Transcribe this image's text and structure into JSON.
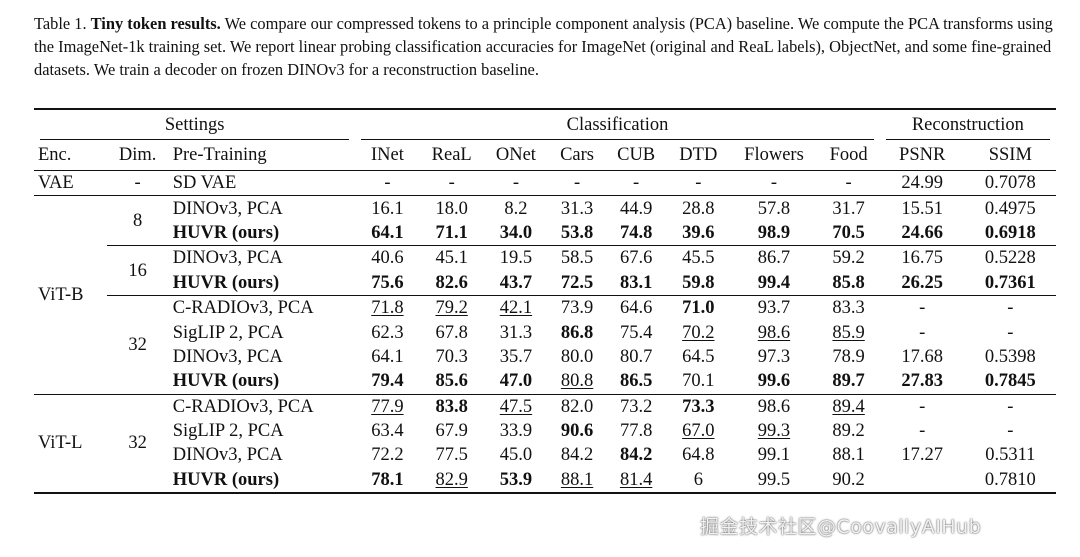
{
  "caption": {
    "label": "Table 1.",
    "bold_title": "Tiny token results.",
    "text": "We compare our compressed tokens to a principle component analysis (PCA) baseline. We compute the PCA transforms using the ImageNet-1k training set. We report linear probing classification accuracies for ImageNet (original and ReaL labels), ObjectNet, and some fine-grained datasets. We train a decoder on frozen DINOv3 for a reconstruction baseline."
  },
  "groups": {
    "settings": "Settings",
    "classification": "Classification",
    "reconstruction": "Reconstruction"
  },
  "columns": [
    "Enc.",
    "Dim.",
    "Pre-Training",
    "INet",
    "ReaL",
    "ONet",
    "Cars",
    "CUB",
    "DTD",
    "Flowers",
    "Food",
    "PSNR",
    "SSIM"
  ],
  "vae_row": {
    "enc": "VAE",
    "dim": "-",
    "pre": "SD VAE",
    "vals": [
      "-",
      "-",
      "-",
      "-",
      "-",
      "-",
      "-",
      "-",
      "24.99",
      "0.7078"
    ]
  },
  "vitb": {
    "enc": "ViT-B",
    "block8": {
      "dim": "8",
      "rows": [
        {
          "pre": "DINOv3, PCA",
          "vals": [
            "16.1",
            "18.0",
            "8.2",
            "31.3",
            "44.9",
            "28.8",
            "57.8",
            "31.7",
            "15.51",
            "0.4975"
          ]
        },
        {
          "pre": "HUVR (ours)",
          "vals": [
            "64.1",
            "71.1",
            "34.0",
            "53.8",
            "74.8",
            "39.6",
            "98.9",
            "70.5",
            "24.66",
            "0.6918"
          ]
        }
      ]
    },
    "block16": {
      "dim": "16",
      "rows": [
        {
          "pre": "DINOv3, PCA",
          "vals": [
            "40.6",
            "45.1",
            "19.5",
            "58.5",
            "67.6",
            "45.5",
            "86.7",
            "59.2",
            "16.75",
            "0.5228"
          ]
        },
        {
          "pre": "HUVR (ours)",
          "vals": [
            "75.6",
            "82.6",
            "43.7",
            "72.5",
            "83.1",
            "59.8",
            "99.4",
            "85.8",
            "26.25",
            "0.7361"
          ]
        }
      ]
    },
    "block32": {
      "dim": "32",
      "rows": [
        {
          "pre": "C-RADIOv3, PCA",
          "vals": [
            "71.8",
            "79.2",
            "42.1",
            "73.9",
            "64.6",
            "71.0",
            "93.7",
            "83.3",
            "-",
            "-"
          ]
        },
        {
          "pre": "SigLIP 2, PCA",
          "vals": [
            "62.3",
            "67.8",
            "31.3",
            "86.8",
            "75.4",
            "70.2",
            "98.6",
            "85.9",
            "-",
            "-"
          ]
        },
        {
          "pre": "DINOv3, PCA",
          "vals": [
            "64.1",
            "70.3",
            "35.7",
            "80.0",
            "80.7",
            "64.5",
            "97.3",
            "78.9",
            "17.68",
            "0.5398"
          ]
        },
        {
          "pre": "HUVR (ours)",
          "vals": [
            "79.4",
            "85.6",
            "47.0",
            "80.8",
            "86.5",
            "70.1",
            "99.6",
            "89.7",
            "27.83",
            "0.7845"
          ]
        }
      ]
    }
  },
  "vitl": {
    "enc": "ViT-L",
    "block32": {
      "dim": "32",
      "rows": [
        {
          "pre": "C-RADIOv3, PCA",
          "vals": [
            "77.9",
            "83.8",
            "47.5",
            "82.0",
            "73.2",
            "73.3",
            "98.6",
            "89.4",
            "-",
            "-"
          ]
        },
        {
          "pre": "SigLIP 2, PCA",
          "vals": [
            "63.4",
            "67.9",
            "33.9",
            "90.6",
            "77.8",
            "67.0",
            "99.3",
            "89.2",
            "-",
            "-"
          ]
        },
        {
          "pre": "DINOv3, PCA",
          "vals": [
            "72.2",
            "77.5",
            "45.0",
            "84.2",
            "84.2",
            "64.8",
            "99.1",
            "88.1",
            "17.27",
            "0.5311"
          ]
        },
        {
          "pre": "HUVR (ours)",
          "vals": [
            "78.1",
            "82.9",
            "53.9",
            "88.1",
            "81.4",
            "6",
            "99.5",
            "90.2",
            "",
            "0.7810"
          ]
        }
      ]
    }
  },
  "watermark": "掘金技术社区@CoovallyAIHub"
}
